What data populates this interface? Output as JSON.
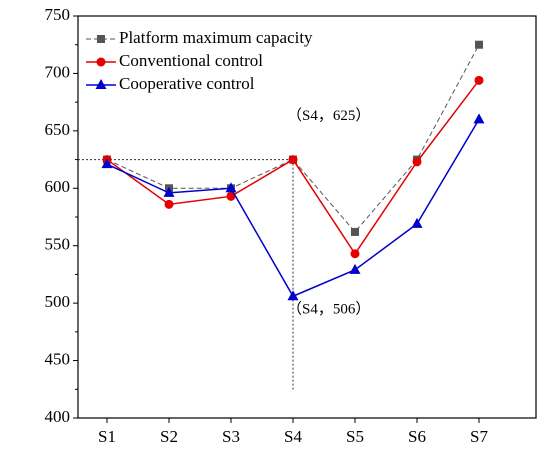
{
  "chart_data": {
    "type": "line",
    "categories": [
      "S1",
      "S2",
      "S3",
      "S4",
      "S5",
      "S6",
      "S7"
    ],
    "series": [
      {
        "name": "Platform maximum capacity",
        "color": "#555555",
        "marker": "square",
        "dashed": true,
        "values": [
          625,
          600,
          600,
          625,
          562,
          625,
          725
        ]
      },
      {
        "name": "Conventional control",
        "color": "#e60000",
        "marker": "circle",
        "dashed": false,
        "values": [
          625,
          586,
          593,
          625,
          543,
          623,
          694
        ]
      },
      {
        "name": "Cooperative control",
        "color": "#0000cc",
        "marker": "triangle",
        "dashed": false,
        "values": [
          621,
          596,
          600,
          506,
          529,
          569,
          660
        ]
      }
    ],
    "annotations": [
      "（S4，625）",
      "（S4，506）"
    ],
    "ylim": [
      400,
      750
    ],
    "yticks": [
      400,
      450,
      500,
      550,
      600,
      650,
      700,
      750
    ],
    "grid": false,
    "legend": "upper left"
  }
}
